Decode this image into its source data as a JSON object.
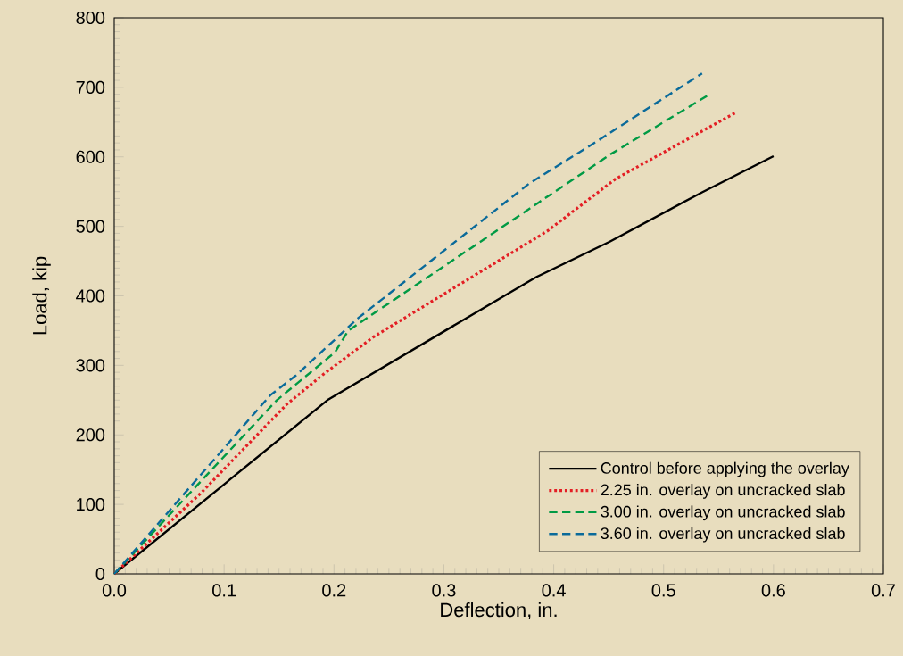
{
  "chart_data": {
    "type": "line",
    "xlabel": "Deflection, in.",
    "ylabel": "Load, kip",
    "xlim": [
      0,
      0.7
    ],
    "ylim": [
      0,
      800
    ],
    "xticks": [
      {
        "value": 0,
        "label": "0.0"
      },
      0.1,
      0.2,
      0.3,
      0.4,
      0.5,
      0.6,
      0.7
    ],
    "yticks": [
      0,
      100,
      200,
      300,
      400,
      500,
      600,
      700,
      800
    ],
    "legend": "bottom right",
    "grid": false,
    "marker": "none",
    "series": [
      {
        "name": "Control before applying the overlay",
        "color": "#000000",
        "line_style": "solid",
        "x": [
          0,
          0.194,
          0.384,
          0.451,
          0.535,
          0.6
        ],
        "values": [
          0,
          250,
          427,
          478,
          549,
          601
        ]
      },
      {
        "name": "2.25 in. overlay on uncracked slab",
        "color": "#e31e24",
        "line_style": "dotted",
        "x": [
          0,
          0.08,
          0.157,
          0.191,
          0.236,
          0.394,
          0.456,
          0.566
        ],
        "values": [
          0,
          118,
          244,
          288,
          341,
          493,
          568,
          664
        ]
      },
      {
        "name": "3.00 in. overlay on uncracked slab",
        "color": "#009a44",
        "line_style": "dashed",
        "x": [
          0,
          0.148,
          0.201,
          0.213,
          0.386,
          0.453,
          0.543
        ],
        "values": [
          0,
          250,
          319,
          350,
          534,
          605,
          691
        ]
      },
      {
        "name": "3.60 in. overlay on uncracked slab",
        "color": "#0a6a9a",
        "line_style": "dashed",
        "x": [
          0,
          0.142,
          0.165,
          0.222,
          0.378,
          0.433,
          0.535
        ],
        "values": [
          0,
          257,
          285,
          368,
          562,
          616,
          720
        ]
      }
    ]
  }
}
